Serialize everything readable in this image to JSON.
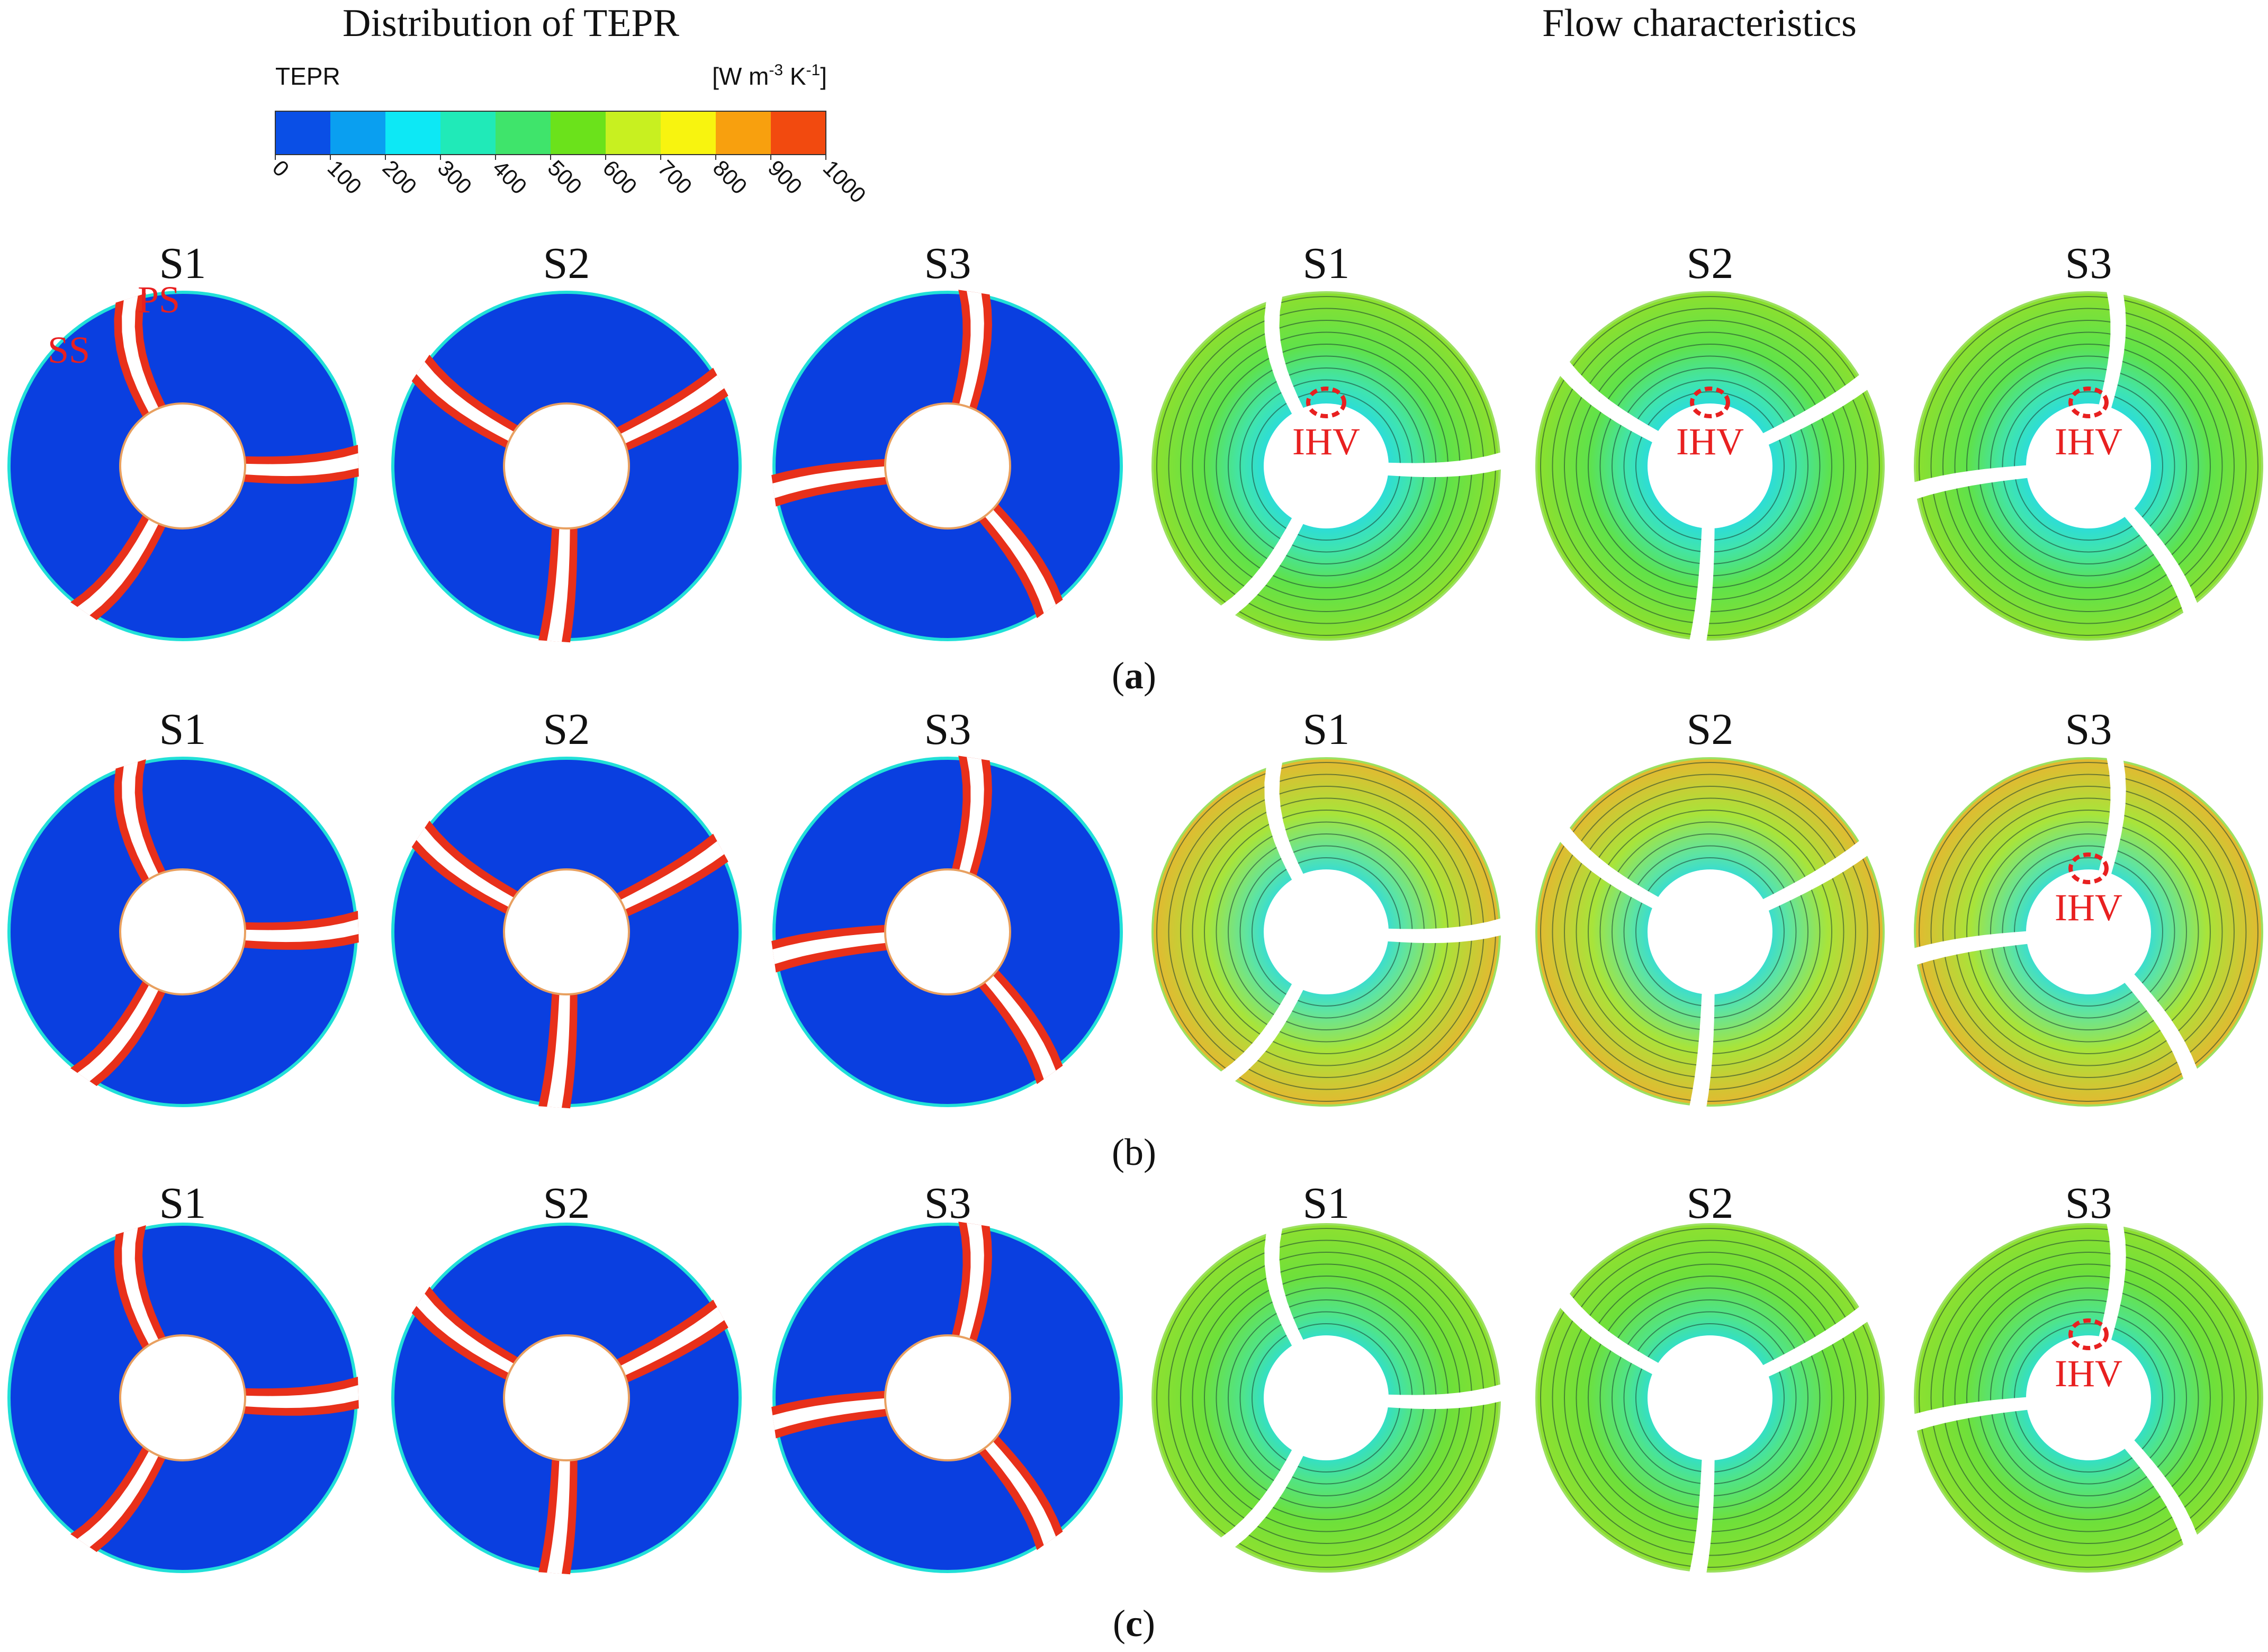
{
  "headers": {
    "left": "Distribution of TEPR",
    "right": "Flow characteristics"
  },
  "legend": {
    "title": "TEPR",
    "unit_prefix": "[W m",
    "unit_exp1": "-3",
    "unit_mid": " K",
    "unit_exp2": "-1",
    "unit_suffix": "]",
    "ticks": [
      "0",
      "100",
      "200",
      "300",
      "400",
      "500",
      "600",
      "700",
      "800",
      "900",
      "1000"
    ],
    "colors": [
      "#0a4fe6",
      "#0a9ff0",
      "#0de8f5",
      "#20eab8",
      "#3fe46b",
      "#6be21b",
      "#c8f020",
      "#f8f40f",
      "#f8a00e",
      "#f24a0f"
    ]
  },
  "stage_labels": [
    "S1",
    "S2",
    "S3"
  ],
  "panels": [
    {
      "label_open": "(",
      "label_letter": "a",
      "label_close": ")",
      "bold": true,
      "annotations": {
        "ss": "SS",
        "ps": "PS"
      },
      "flow_ihv": [
        true,
        true,
        true
      ],
      "ihv_label": "IHV"
    },
    {
      "label_open": "(",
      "label_letter": "b",
      "label_close": ")",
      "bold": false,
      "flow_ihv": [
        false,
        false,
        true
      ],
      "ihv_label": "IHV"
    },
    {
      "label_open": "(",
      "label_letter": "c",
      "label_close": ")",
      "bold": true,
      "flow_ihv": [
        false,
        false,
        true
      ],
      "ihv_label": "IHV"
    }
  ],
  "colors": {
    "tepr_background": "#0a3fe0",
    "blade_stripe": "#f02a10",
    "flow_outer": "#6fe03a",
    "flow_inner": "#27d6e6",
    "annotation_red": "#e82020"
  }
}
